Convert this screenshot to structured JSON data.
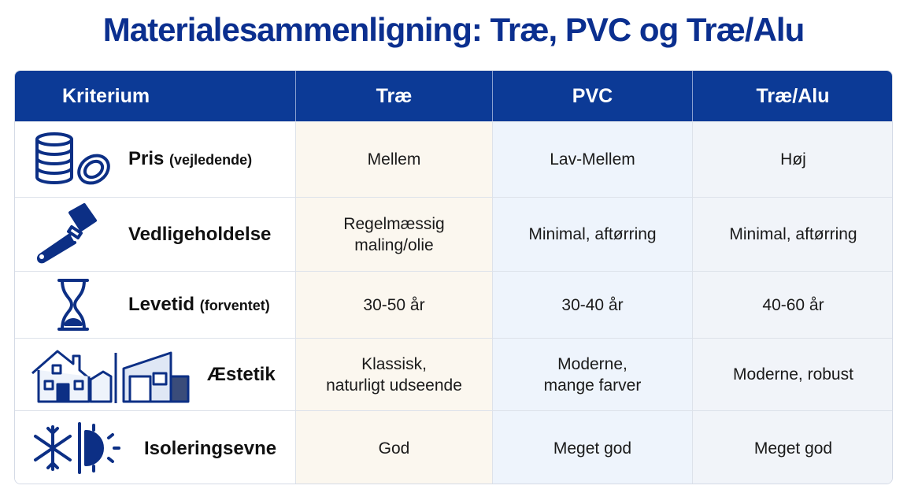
{
  "header": {
    "title": "Materialesammenligning: Træ, PVC og Træ/Alu"
  },
  "table": {
    "columns": [
      "Kriterium",
      "Træ",
      "PVC",
      "Træ/Alu"
    ],
    "rows": [
      {
        "criterion": "Pris",
        "note": "(vejledende)",
        "cells": [
          [
            "Mellem"
          ],
          [
            "Lav-Mellem"
          ],
          [
            "Høj"
          ]
        ]
      },
      {
        "criterion": "Vedligeholdelse",
        "cells": [
          [
            "Regelmæssig",
            "maling/olie"
          ],
          [
            "Minimal, aftørring"
          ],
          [
            "Minimal, aftørring"
          ]
        ]
      },
      {
        "criterion": "Levetid",
        "note": "(forventet)",
        "cells": [
          [
            "30-50 år"
          ],
          [
            "30-40 år"
          ],
          [
            "40-60 år"
          ]
        ]
      },
      {
        "criterion": "Æstetik",
        "cells": [
          [
            "Klassisk,",
            "naturligt udseende"
          ],
          [
            "Moderne,",
            "mange farver"
          ],
          [
            "Moderne, robust"
          ]
        ]
      },
      {
        "criterion": "Isoleringsevne",
        "cells": [
          [
            "God"
          ],
          [
            "Meget god"
          ],
          [
            "Meget god"
          ]
        ]
      }
    ]
  }
}
